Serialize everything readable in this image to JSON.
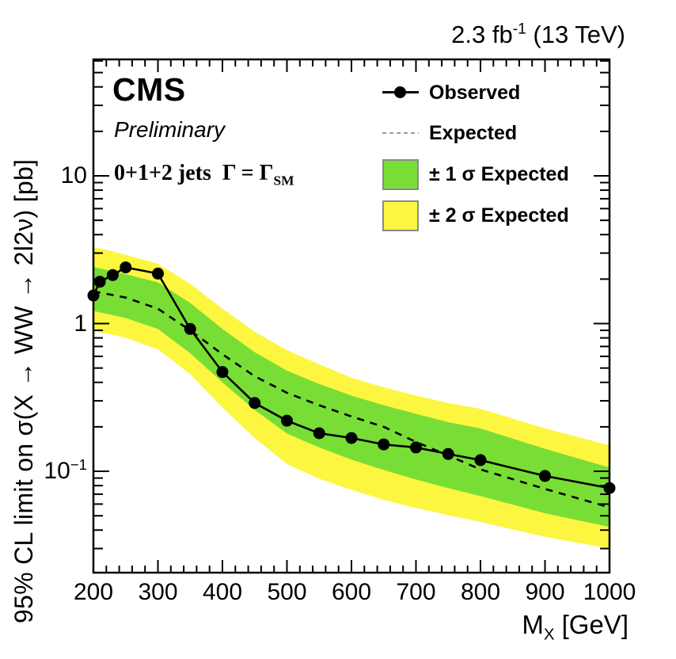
{
  "header": {
    "lumi_text": "2.3 fb",
    "lumi_sup": "-1",
    "lumi_rest": " (13 TeV)"
  },
  "labels": {
    "experiment": "CMS",
    "status": "Preliminary",
    "channel_prefix": "0+1+2 jets",
    "channel_width": "Γ = Γ",
    "channel_width_sub": "SM"
  },
  "legend": {
    "items": [
      {
        "label": "Observed",
        "marker": "line-marker"
      },
      {
        "label": "Expected",
        "marker": "dashed-line"
      },
      {
        "label": "± 1 σ Expected",
        "marker": "green-band"
      },
      {
        "label": "± 2 σ Expected",
        "marker": "yellow-band"
      }
    ]
  },
  "colors": {
    "band_1sigma": "#78DE35",
    "band_2sigma": "#FDF640",
    "observed": "#000000",
    "expected": "#000000",
    "legend_dash": "#999999",
    "frame": "#000000"
  },
  "chart_data": {
    "type": "line",
    "title": "95% CL upper limit on signal cross section vs resonance mass",
    "xlabel_text": "M",
    "xlabel_sub": "X",
    "xlabel_rest": " [GeV]",
    "ylabel": "95% CL limit on σ(X → WW → 2l2ν) [pb]",
    "x_axis": {
      "scale": "linear",
      "min": 200,
      "max": 1000,
      "major_ticks": [
        200,
        300,
        400,
        500,
        600,
        700,
        800,
        900,
        1000
      ],
      "minor_step": 20
    },
    "y_axis": {
      "scale": "log",
      "min": 0.0206,
      "max": 61.4,
      "tick_labels": [
        {
          "value": 10,
          "base": "10"
        },
        {
          "value": 1,
          "base": "1"
        },
        {
          "value": 0.1,
          "base": "10",
          "sup": "−1"
        }
      ]
    },
    "x": [
      200,
      210,
      230,
      250,
      300,
      350,
      400,
      450,
      500,
      550,
      600,
      650,
      700,
      750,
      800,
      900,
      1000
    ],
    "series": [
      {
        "name": "Observed",
        "values": [
          1.55,
          1.92,
          2.13,
          2.4,
          2.18,
          0.92,
          0.47,
          0.29,
          0.22,
          0.181,
          0.168,
          0.152,
          0.145,
          0.131,
          0.119,
          0.093,
          0.077
        ]
      },
      {
        "name": "Expected",
        "values": [
          1.66,
          1.62,
          1.56,
          1.5,
          1.26,
          0.9,
          0.62,
          0.44,
          0.34,
          0.28,
          0.235,
          0.2,
          0.158,
          0.128,
          0.103,
          0.076,
          0.057
        ]
      },
      {
        "name": "Expected +1 sigma",
        "values": [
          2.42,
          2.36,
          2.27,
          2.16,
          1.9,
          1.38,
          0.92,
          0.64,
          0.48,
          0.39,
          0.325,
          0.28,
          0.245,
          0.215,
          0.195,
          0.142,
          0.106
        ]
      },
      {
        "name": "Expected -1 sigma",
        "values": [
          1.22,
          1.19,
          1.14,
          1.09,
          0.92,
          0.63,
          0.4,
          0.26,
          0.18,
          0.145,
          0.12,
          0.102,
          0.088,
          0.077,
          0.068,
          0.052,
          0.042
        ]
      },
      {
        "name": "Expected +2 sigma",
        "values": [
          3.3,
          3.22,
          3.08,
          2.92,
          2.54,
          1.86,
          1.26,
          0.88,
          0.66,
          0.53,
          0.43,
          0.37,
          0.325,
          0.29,
          0.265,
          0.195,
          0.15
        ]
      },
      {
        "name": "Expected -2 sigma",
        "values": [
          0.9,
          0.875,
          0.84,
          0.8,
          0.67,
          0.455,
          0.27,
          0.168,
          0.112,
          0.089,
          0.075,
          0.064,
          0.0565,
          0.0505,
          0.0455,
          0.036,
          0.03
        ]
      }
    ],
    "grid": false,
    "legend_position": "top-right"
  }
}
